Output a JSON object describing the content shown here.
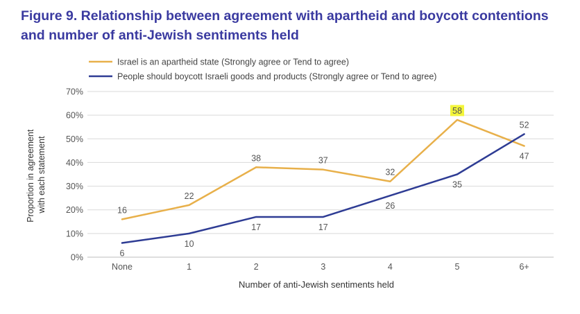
{
  "figure": {
    "title_line1": "Figure 9. Relationship between agreement with apartheid and boycott contentions",
    "title_line2": "and number of anti-Jewish sentiments held"
  },
  "chart_data": {
    "type": "line",
    "categories": [
      "None",
      "1",
      "2",
      "3",
      "4",
      "5",
      "6+"
    ],
    "series": [
      {
        "name": "Israel is an apartheid state (Strongly agree or Tend to agree)",
        "color": "#e8b04a",
        "values": [
          16,
          22,
          38,
          37,
          32,
          58,
          47
        ]
      },
      {
        "name": "People should boycott Israeli goods and products (Strongly agree or Tend to agree)",
        "color": "#2e3c94",
        "values": [
          6,
          10,
          17,
          17,
          26,
          35,
          52
        ]
      }
    ],
    "highlight": {
      "series": 0,
      "index": 5,
      "color": "#f3f53a"
    },
    "xlabel": "Number of anti-Jewish sentiments held",
    "ylabel_line1": "Proportion in agreement",
    "ylabel_line2": "with each statement",
    "ylim": [
      0,
      70
    ],
    "yticks": [
      "0%",
      "10%",
      "20%",
      "30%",
      "40%",
      "50%",
      "60%",
      "70%"
    ],
    "grid": true,
    "legend_position": "top-left"
  }
}
